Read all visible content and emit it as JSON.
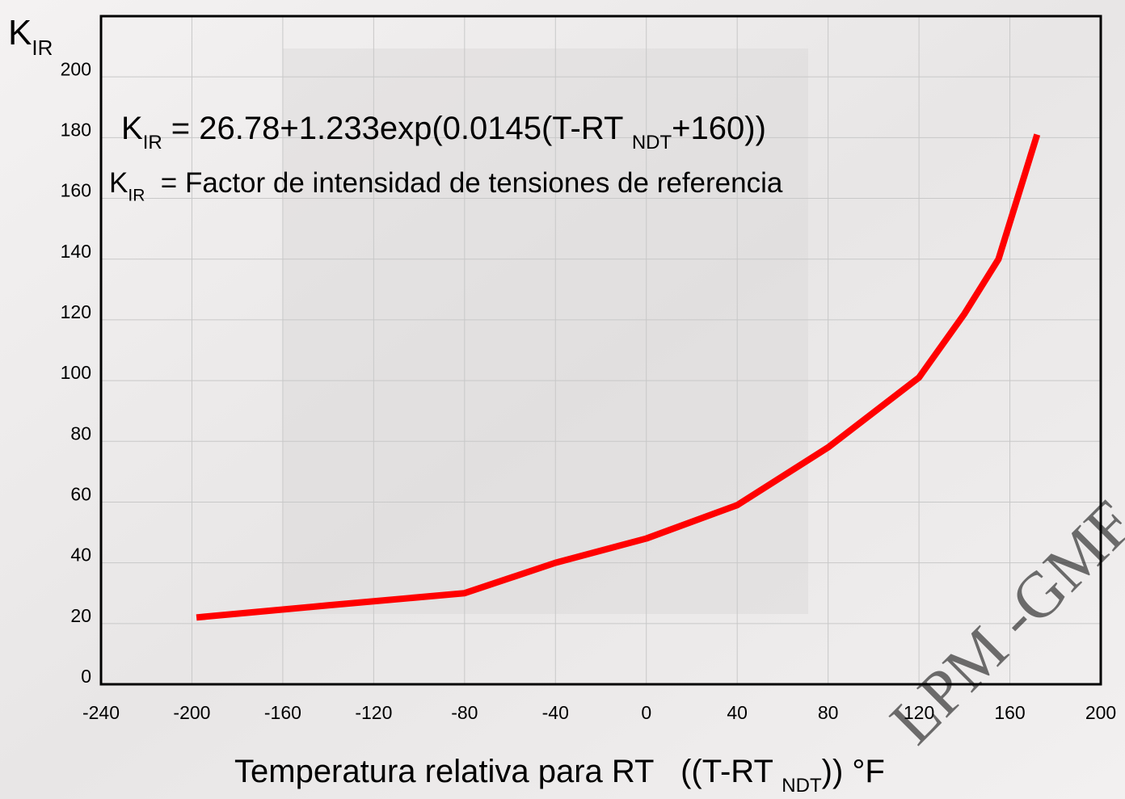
{
  "chart_data": {
    "type": "line",
    "ylabel": [
      {
        "text": "K"
      },
      {
        "sub": "IR"
      }
    ],
    "annotations": [
      [
        {
          "text": "K"
        },
        {
          "sub": "IR"
        },
        {
          "text": " = 26.78+1.233exp(0.0145(T-RT "
        },
        {
          "sub": "NDT"
        },
        {
          "text": "+160))"
        }
      ],
      [
        {
          "text": "K"
        },
        {
          "sub": "IR"
        },
        {
          "text": "  = Factor de intensidad de tensiones de referencia"
        }
      ]
    ],
    "xlabel": [
      {
        "text": "Temperatura relativa para RT   ((T-RT "
      },
      {
        "sub": "NDT"
      },
      {
        "text": ")) °F"
      }
    ],
    "watermark": "LPM -GMF",
    "x": [
      -198,
      -140,
      -80,
      -40,
      0,
      40,
      80,
      120,
      140,
      155,
      172
    ],
    "series": [
      {
        "color": "#ff0000",
        "values": [
          22,
          26,
          30,
          40,
          48,
          59,
          78,
          101,
          122,
          140,
          181
        ]
      }
    ],
    "xlim": [
      -240,
      200
    ],
    "xticks": [
      -240,
      -200,
      -160,
      -120,
      -80,
      -40,
      0,
      40,
      80,
      120,
      160,
      200
    ],
    "ylim": [
      0,
      220
    ],
    "yticks": [
      0,
      20,
      40,
      60,
      80,
      100,
      120,
      140,
      160,
      180,
      200
    ],
    "grid": true
  }
}
